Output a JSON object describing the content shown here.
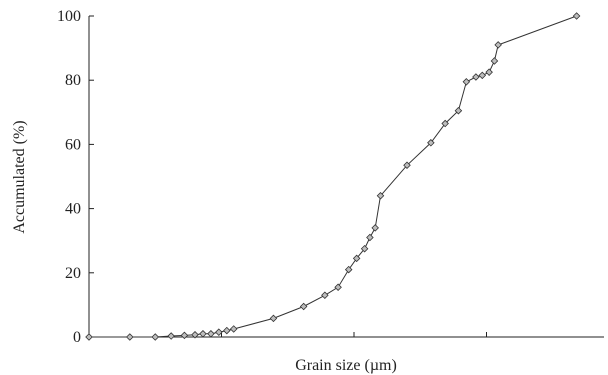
{
  "chart_data": {
    "type": "line",
    "title": "",
    "xlabel": "Grain size (µm)",
    "ylabel": "Accumulated (%)",
    "ylim": [
      0,
      100
    ],
    "yticks": [
      0,
      20,
      40,
      60,
      80,
      100
    ],
    "xlim": [
      0,
      1
    ],
    "xticks_count": 4,
    "grid": false,
    "legend": "none",
    "colors": {
      "line": "#333333",
      "marker_fill": "#bdbdbd",
      "marker_stroke": "#333333",
      "axis": "#222222"
    },
    "marker": "diamond",
    "series": [
      {
        "x": [
          0.0,
          0.077,
          0.125,
          0.155,
          0.18,
          0.2,
          0.215,
          0.23,
          0.245,
          0.26,
          0.273,
          0.348,
          0.405,
          0.445,
          0.47,
          0.49,
          0.505,
          0.52,
          0.53,
          0.54,
          0.55,
          0.6,
          0.645,
          0.672,
          0.697,
          0.712,
          0.73,
          0.742,
          0.755,
          0.765,
          0.772,
          0.92
        ],
        "y": [
          0,
          0,
          0,
          0.3,
          0.5,
          0.7,
          1,
          1,
          1.5,
          2,
          2.5,
          5.8,
          9.5,
          13,
          15.5,
          21,
          24.5,
          27.5,
          31,
          34,
          44,
          53.5,
          60.5,
          66.5,
          70.5,
          79.5,
          81,
          81.5,
          82.5,
          86,
          91,
          100
        ]
      }
    ]
  }
}
